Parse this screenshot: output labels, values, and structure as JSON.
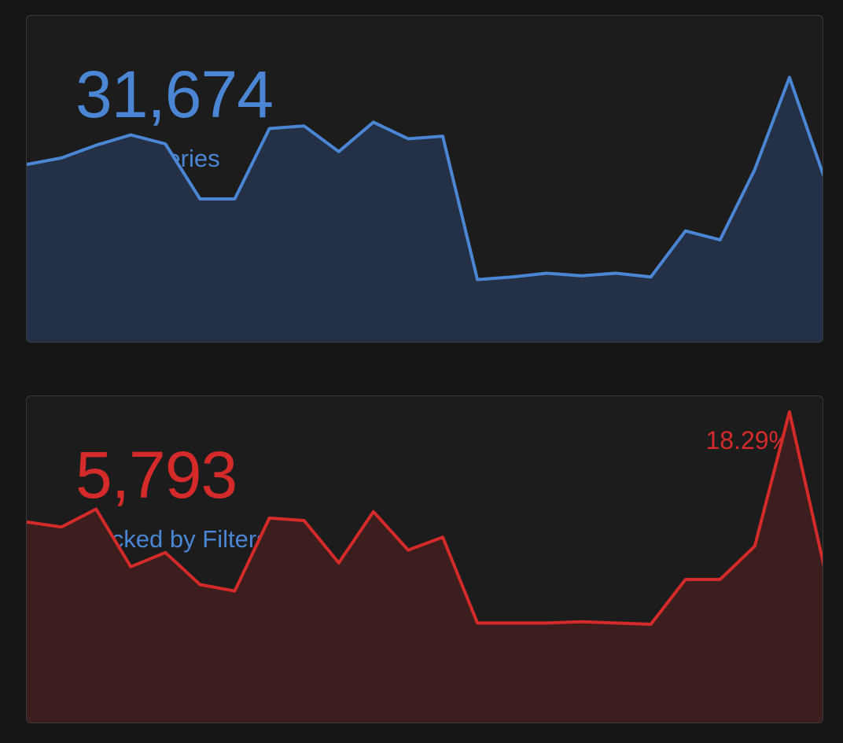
{
  "colors": {
    "page_bg": "#151515",
    "card_bg": "#1c1c1d",
    "queries_accent": "#4a86d4",
    "queries_fill": "#243046",
    "blocked_accent": "#d42a2a",
    "blocked_fill": "#3c1e1f",
    "label_color": "#4a86d4"
  },
  "cards": [
    {
      "value": "31,674",
      "label": "DNS Queries",
      "percent": "",
      "series": [
        140,
        145,
        155,
        163,
        156,
        113,
        113,
        168,
        170,
        150,
        173,
        160,
        162,
        50,
        52,
        55,
        53,
        55,
        52,
        88,
        81,
        136,
        208,
        130
      ]
    },
    {
      "value": "5,793",
      "label": "Blocked by Filters",
      "percent": "18.29%",
      "series": [
        158,
        154,
        168,
        123,
        134,
        109,
        104,
        161,
        159,
        126,
        166,
        136,
        146,
        79,
        79,
        79,
        80,
        79,
        78,
        113,
        113,
        139,
        244,
        123
      ]
    }
  ]
}
